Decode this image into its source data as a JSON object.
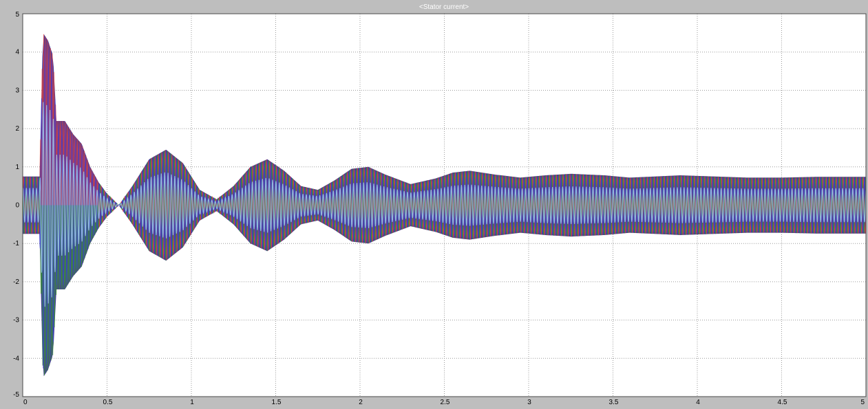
{
  "chart_data": {
    "type": "line",
    "title": "<Stator current>",
    "xlabel": "",
    "ylabel": "",
    "xlim": [
      0,
      5
    ],
    "ylim": [
      -5,
      5
    ],
    "x_ticks": [
      {
        "value": 0,
        "label": "0"
      },
      {
        "value": 0.5,
        "label": "0.5"
      },
      {
        "value": 1,
        "label": "1"
      },
      {
        "value": 1.5,
        "label": "1.5"
      },
      {
        "value": 2,
        "label": "2"
      },
      {
        "value": 2.5,
        "label": "2.5"
      },
      {
        "value": 3,
        "label": "3"
      },
      {
        "value": 3.5,
        "label": "3.5"
      },
      {
        "value": 4,
        "label": "4"
      },
      {
        "value": 4.5,
        "label": "4.5"
      },
      {
        "value": 5,
        "label": "5"
      }
    ],
    "y_ticks": [
      {
        "value": 5,
        "label": "5"
      },
      {
        "value": 4,
        "label": "4"
      },
      {
        "value": 3,
        "label": "3"
      },
      {
        "value": 2,
        "label": "2"
      },
      {
        "value": 1,
        "label": "1"
      },
      {
        "value": 0,
        "label": "0"
      },
      {
        "value": -1,
        "label": "-1"
      },
      {
        "value": -2,
        "label": "-2"
      },
      {
        "value": -3,
        "label": "-3"
      },
      {
        "value": -4,
        "label": "-4"
      },
      {
        "value": -5,
        "label": "-5"
      }
    ],
    "grid": true,
    "grid_style": "dotted",
    "legend": "none",
    "series": [
      {
        "color": "#e8433a",
        "phase_deg": 0
      },
      {
        "color": "#3a9a2c",
        "phase_deg": 120
      },
      {
        "color": "#3b3bd0",
        "phase_deg": 240
      },
      {
        "color": "#9fc8f0",
        "phase_deg": 60
      }
    ],
    "envelope": {
      "time": [
        0,
        0.1,
        0.12,
        0.15,
        0.18,
        0.2,
        0.25,
        0.3,
        0.35,
        0.4,
        0.45,
        0.5,
        0.57,
        0.65,
        0.75,
        0.85,
        0.95,
        1.05,
        1.15,
        1.25,
        1.35,
        1.45,
        1.55,
        1.65,
        1.75,
        1.85,
        1.95,
        2.05,
        2.15,
        2.3,
        2.45,
        2.55,
        2.65,
        2.8,
        2.95,
        3.1,
        3.25,
        3.45,
        3.6,
        3.8,
        3.9,
        4.1,
        4.3,
        4.5,
        4.7,
        5.0
      ],
      "amplitude": [
        0.75,
        0.75,
        4.5,
        4.3,
        3.9,
        2.2,
        2.2,
        1.85,
        1.6,
        1.0,
        0.6,
        0.3,
        0.0,
        0.5,
        1.2,
        1.45,
        1.1,
        0.4,
        0.15,
        0.5,
        1.0,
        1.2,
        0.9,
        0.5,
        0.4,
        0.65,
        0.95,
        1.0,
        0.8,
        0.55,
        0.7,
        0.85,
        0.9,
        0.8,
        0.72,
        0.78,
        0.82,
        0.78,
        0.72,
        0.76,
        0.78,
        0.75,
        0.72,
        0.72,
        0.74,
        0.74
      ],
      "steady_state_amplitude": 0.74
    }
  }
}
